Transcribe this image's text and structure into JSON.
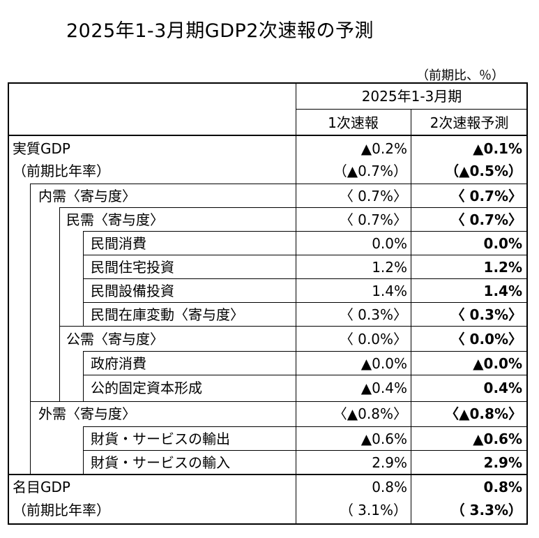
{
  "title": "2025年1-3月期GDP2次速報の予測",
  "unit_note": "（前期比、％）",
  "header": {
    "period": "2025年1-3月期",
    "col1": "1次速報",
    "col2": "2次速報予測"
  },
  "rows": [
    {
      "label": "実質GDP",
      "v1": "▲0.2%",
      "v2": "▲0.1%"
    },
    {
      "label": "（前期比年率）",
      "v1": "（▲0.7%）",
      "v2": "（▲0.5%）"
    },
    {
      "label": "内需〈寄与度〉",
      "v1": "〈 0.7%〉",
      "v2": "〈 0.7%〉"
    },
    {
      "label": "民需〈寄与度〉",
      "v1": "〈 0.7%〉",
      "v2": "〈 0.7%〉"
    },
    {
      "label": "民間消費",
      "v1": "0.0%",
      "v2": "0.0%"
    },
    {
      "label": "民間住宅投資",
      "v1": "1.2%",
      "v2": "1.2%"
    },
    {
      "label": "民間設備投資",
      "v1": "1.4%",
      "v2": "1.4%"
    },
    {
      "label": "民間在庫変動〈寄与度〉",
      "v1": "〈 0.3%〉",
      "v2": "〈 0.3%〉"
    },
    {
      "label": "公需〈寄与度〉",
      "v1": "〈 0.0%〉",
      "v2": "〈 0.0%〉"
    },
    {
      "label": "政府消費",
      "v1": "▲0.0%",
      "v2": "▲0.0%"
    },
    {
      "label": "公的固定資本形成",
      "v1": "▲0.4%",
      "v2": "0.4%"
    },
    {
      "label": "外需〈寄与度〉",
      "v1": "〈▲0.8%〉",
      "v2": "〈▲0.8%〉"
    },
    {
      "label": "財貨・サービスの輸出",
      "v1": "▲0.6%",
      "v2": "▲0.6%"
    },
    {
      "label": "財貨・サービスの輸入",
      "v1": "2.9%",
      "v2": "2.9%"
    },
    {
      "label": "名目GDP",
      "v1": "0.8%",
      "v2": "0.8%"
    },
    {
      "label": "（前期比年率）",
      "v1": "（ 3.1%）",
      "v2": "（ 3.3%）"
    }
  ]
}
